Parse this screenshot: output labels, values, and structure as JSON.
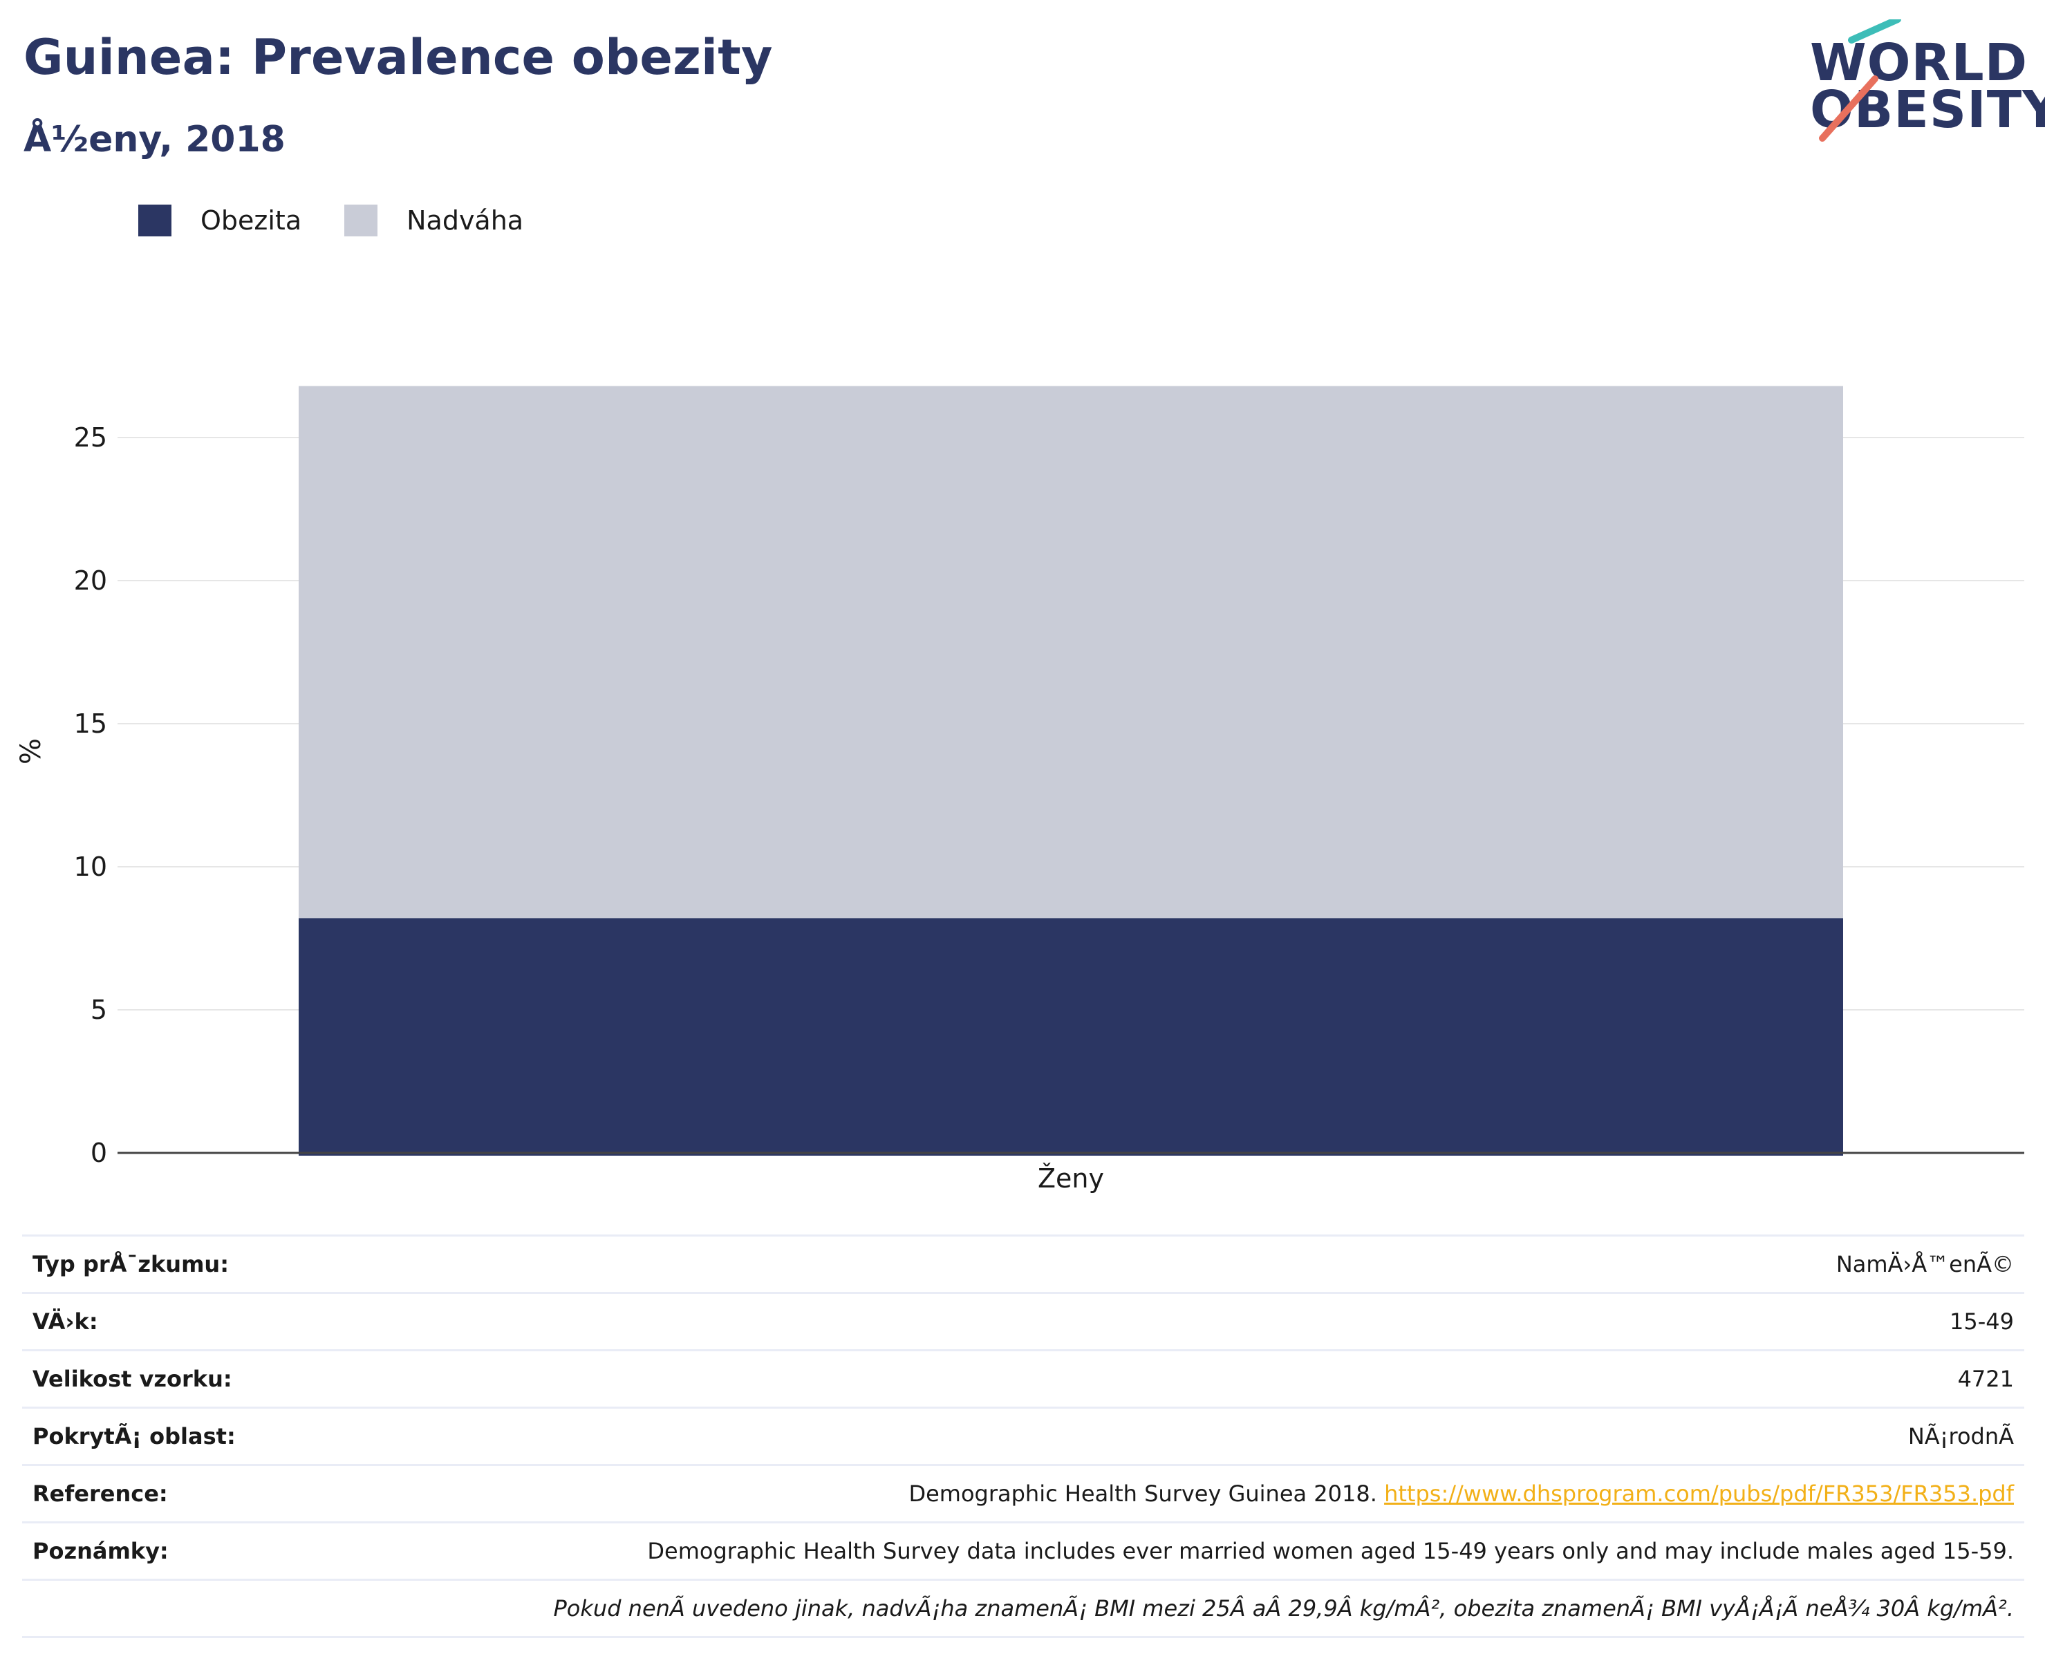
{
  "header": {
    "title": "Guinea: Prevalence obezity",
    "subtitle": "Å½eny, 2018"
  },
  "logo": {
    "line1": "WORLD",
    "line2": "OBESITY"
  },
  "colors": {
    "obesity": "#2b3663",
    "overweight": "#c9ccd7",
    "title": "#2b3663",
    "link": "#f2b018",
    "logo_teal": "#3dbdb8",
    "logo_coral": "#e8705d"
  },
  "legend": [
    "Obezita",
    "Nadváha"
  ],
  "chart_data": {
    "type": "bar",
    "stacked": true,
    "categories": [
      "Ženy"
    ],
    "series": [
      {
        "name": "Obezita",
        "values": [
          8.3
        ],
        "color": "#2b3663"
      },
      {
        "name": "Nadváha",
        "values": [
          18.5
        ],
        "color": "#c9ccd7"
      }
    ],
    "xlabel": "",
    "ylabel": "%",
    "ylim": [
      0,
      27
    ],
    "yticks": [
      0,
      5,
      10,
      15,
      20,
      25
    ],
    "grid": true
  },
  "info": {
    "rows": [
      {
        "label": "Typ prÅ¯zkumu:",
        "value": "NamÄ›Å™enÃ©"
      },
      {
        "label": "VÄ›k:",
        "value": "15-49"
      },
      {
        "label": "Velikost vzorku:",
        "value": "4721"
      },
      {
        "label": "PokrytÃ¡ oblast:",
        "value": "NÃ¡rodnÃ"
      }
    ],
    "reference": {
      "label": "Reference:",
      "text": "Demographic Health Survey Guinea 2018.",
      "link": "https://www.dhsprogram.com/pubs/pdf/FR353/FR353.pdf"
    },
    "notes": {
      "label": "Poznámky:",
      "value": "Demographic Health Survey data includes ever married women aged 15-49 years only and may include males aged 15-59."
    },
    "footnote": "Pokud nenÃ uvedeno jinak, nadvÃ¡ha znamenÃ¡ BMI mezi 25Â aÂ 29,9Â kg/mÂ², obezita znamenÃ¡ BMI vyÅ¡Å¡Ã neÅ¾ 30Â kg/mÂ²."
  }
}
